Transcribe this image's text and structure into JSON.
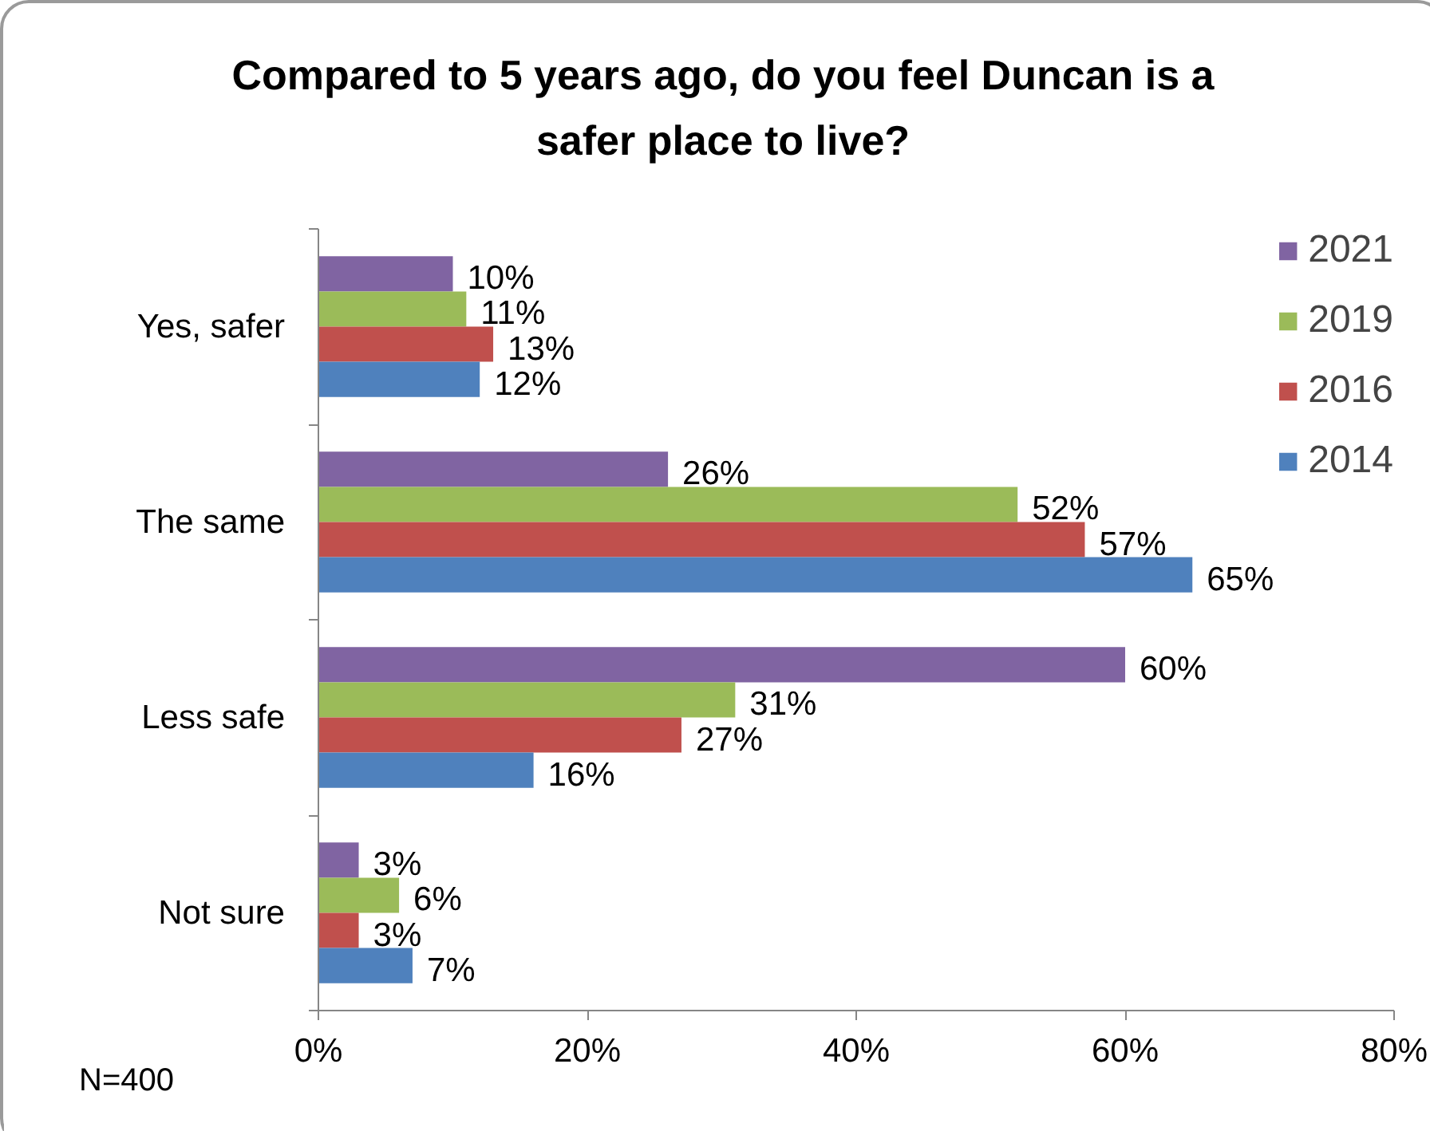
{
  "chart_data": {
    "type": "bar",
    "orientation": "horizontal",
    "title": "Compared to 5 years ago, do you feel Duncan is a safer place to live?",
    "categories": [
      "Yes, safer",
      "The same",
      "Less safe",
      "Not sure"
    ],
    "series": [
      {
        "name": "2021",
        "color": "#8064a2",
        "values": [
          10,
          26,
          60,
          3
        ],
        "value_labels": [
          "10%",
          "26%",
          "60%",
          "3%"
        ]
      },
      {
        "name": "2019",
        "color": "#9bbb59",
        "values": [
          11,
          52,
          31,
          6
        ],
        "value_labels": [
          "11%",
          "52%",
          "31%",
          "6%"
        ]
      },
      {
        "name": "2016",
        "color": "#c0504d",
        "values": [
          13,
          57,
          27,
          3
        ],
        "value_labels": [
          "13%",
          "57%",
          "27%",
          "3%"
        ]
      },
      {
        "name": "2014",
        "color": "#4f81bd",
        "values": [
          12,
          65,
          16,
          7
        ],
        "value_labels": [
          "12%",
          "65%",
          "16%",
          "7%"
        ]
      }
    ],
    "xlim": [
      0,
      80
    ],
    "xticks": [
      {
        "value": 0,
        "label": "0%"
      },
      {
        "value": 20,
        "label": "20%"
      },
      {
        "value": 40,
        "label": "40%"
      },
      {
        "value": 60,
        "label": "60%"
      },
      {
        "value": 80,
        "label": "80%"
      }
    ],
    "grid": false,
    "legend": "top right",
    "annotations": [
      "N=400"
    ]
  }
}
